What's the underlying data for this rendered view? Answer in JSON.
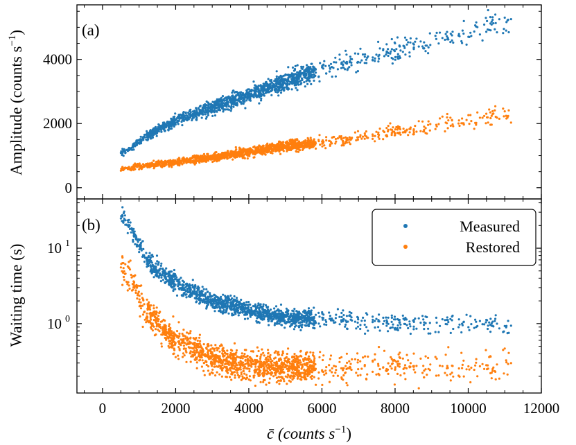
{
  "colors": {
    "measured": "#1f77b4",
    "restored": "#ff7f0e"
  },
  "chart_data": [
    {
      "panel": "a",
      "type": "scatter",
      "label": "(a)",
      "xlabel_main": "c̄ (counts s",
      "xlabel_sup": "−1",
      "xlabel_end": ")",
      "ylabel_main": "Amplitude (counts s",
      "ylabel_sup": "−1",
      "ylabel_end": ")",
      "xlim": [
        -700,
        12000
      ],
      "ylim": [
        -350,
        5700
      ],
      "yscale": "linear",
      "yticks": [
        0,
        2000,
        4000
      ],
      "ytick_labels": [
        "0",
        "2000",
        "4000"
      ],
      "series": [
        {
          "name": "Measured",
          "model": {
            "x_range": [
              500,
              11200
            ],
            "x_density": "dense below 6000, sparse above",
            "trend_points": [
              [
                600,
                1100
              ],
              [
                1200,
                1600
              ],
              [
                2000,
                2100
              ],
              [
                3000,
                2500
              ],
              [
                4000,
                2900
              ],
              [
                5000,
                3300
              ],
              [
                6000,
                3700
              ],
              [
                8000,
                4300
              ],
              [
                10000,
                4900
              ],
              [
                11200,
                5200
              ]
            ],
            "rel_scatter": 0.06
          }
        },
        {
          "name": "Restored",
          "model": {
            "x_range": [
              500,
              11200
            ],
            "x_density": "dense below 6000, sparse above",
            "trend_points": [
              [
                600,
                600
              ],
              [
                1200,
                700
              ],
              [
                2000,
                800
              ],
              [
                3000,
                950
              ],
              [
                4000,
                1100
              ],
              [
                5000,
                1300
              ],
              [
                6000,
                1400
              ],
              [
                8000,
                1750
              ],
              [
                10000,
                2100
              ],
              [
                11200,
                2250
              ]
            ],
            "rel_scatter": 0.09
          }
        }
      ]
    },
    {
      "panel": "b",
      "type": "scatter",
      "label": "(b)",
      "xlabel_main": "c̄ (counts s",
      "xlabel_sup": "−1",
      "xlabel_end": ")",
      "ylabel": "Waiting time (s)",
      "xlim": [
        -700,
        12000
      ],
      "ylim": [
        0.12,
        45
      ],
      "yscale": "log",
      "yticks": [
        1,
        10
      ],
      "ytick_labels_base": [
        "10",
        "10"
      ],
      "ytick_labels_exp": [
        "0",
        "1"
      ],
      "xticks": [
        0,
        2000,
        4000,
        6000,
        8000,
        10000,
        12000
      ],
      "xtick_labels": [
        "0",
        "2000",
        "4000",
        "6000",
        "8000",
        "10000",
        "12000"
      ],
      "legend": {
        "position": "top-right",
        "entries": [
          "Measured",
          "Restored"
        ]
      },
      "series": [
        {
          "name": "Measured",
          "model": {
            "x_range": [
              500,
              11200
            ],
            "trend_points": [
              [
                600,
                25
              ],
              [
                900,
                14
              ],
              [
                1200,
                7
              ],
              [
                1600,
                5
              ],
              [
                2000,
                3.5
              ],
              [
                3000,
                2.0
              ],
              [
                4000,
                1.5
              ],
              [
                5000,
                1.2
              ],
              [
                6000,
                1.12
              ],
              [
                8000,
                1.03
              ],
              [
                11200,
                0.95
              ]
            ],
            "log_scatter": 0.06
          }
        },
        {
          "name": "Restored",
          "model": {
            "x_range": [
              500,
              11200
            ],
            "trend_points": [
              [
                600,
                5.5
              ],
              [
                900,
                3.0
              ],
              [
                1200,
                1.5
              ],
              [
                1600,
                0.9
              ],
              [
                2000,
                0.6
              ],
              [
                3000,
                0.35
              ],
              [
                4000,
                0.28
              ],
              [
                5000,
                0.27
              ],
              [
                6000,
                0.27
              ],
              [
                8000,
                0.26
              ],
              [
                11200,
                0.26
              ]
            ],
            "log_scatter": 0.1
          }
        }
      ]
    }
  ]
}
